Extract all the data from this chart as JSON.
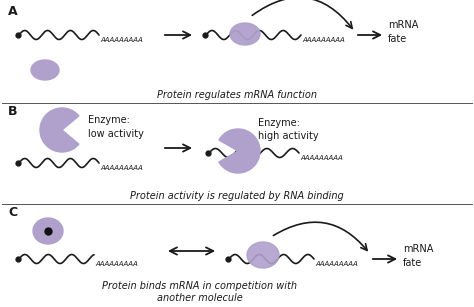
{
  "bg_color": "#ffffff",
  "protein_color": "#b0a0cc",
  "line_color": "#1a1a1a",
  "text_color": "#1a1a1a",
  "section_A_label": "A",
  "section_B_label": "B",
  "section_C_label": "C",
  "caption_A": "Protein regulates mRNA function",
  "caption_B": "Protein activity is regulated by RNA binding",
  "caption_C": "Protein binds mRNA in competition with\nanother molecule",
  "label_enzyme_low": "Enzyme:\nlow activity",
  "label_enzyme_high": "Enzyme:\nhigh activity",
  "label_mrna_fate_A": "mRNA\nfate",
  "label_mrna_fate_C": "mRNA\nfate",
  "poly_a": "AAAAAAAAA",
  "divider_color": "#555555",
  "font_size_label": 8,
  "font_size_caption": 7,
  "font_size_section": 9
}
